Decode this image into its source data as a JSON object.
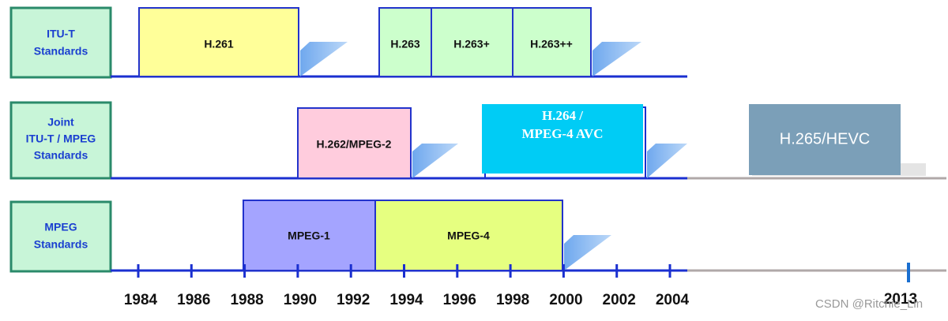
{
  "rows": [
    {
      "lines": [
        "ITU-T",
        "Standards"
      ]
    },
    {
      "lines": [
        "Joint",
        "ITU-T / MPEG",
        "Standards"
      ]
    },
    {
      "lines": [
        "MPEG",
        "Standards"
      ]
    }
  ],
  "standards": {
    "itu": [
      "H.261",
      "H.263",
      "H.263+",
      "H.263++"
    ],
    "joint": [
      "H.262/MPEG-2",
      "H.264 /",
      "MPEG-4 AVC",
      "H.265/HEVC"
    ],
    "mpeg": [
      "MPEG-1",
      "MPEG-4"
    ]
  },
  "years": [
    "1984",
    "1986",
    "1988",
    "1990",
    "1992",
    "1994",
    "1996",
    "1998",
    "2000",
    "2002",
    "2004"
  ],
  "late_year": "2013",
  "watermark": "CSDN @Ritchie_Lin"
}
